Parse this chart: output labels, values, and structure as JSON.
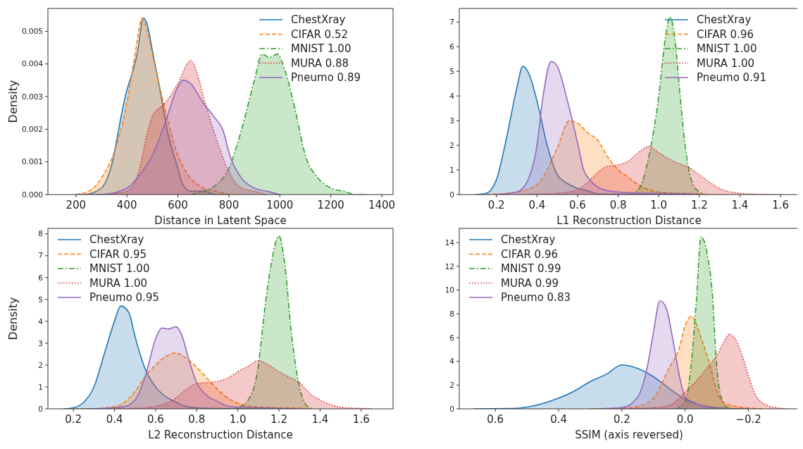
{
  "chart_data": [
    {
      "type": "area",
      "xlabel": "Distance in Latent Space",
      "ylabel": "Density",
      "xlim": [
        90,
        1444
      ],
      "ylim": [
        0,
        0.0057
      ],
      "xticks": [
        200,
        400,
        600,
        800,
        1000,
        1200,
        1400
      ],
      "yticks": [
        {
          "value": 0,
          "label": "0.000"
        },
        {
          "value": 0.001,
          "label": "0.001"
        },
        {
          "value": 0.002,
          "label": "0.002"
        },
        {
          "value": 0.003,
          "label": "0.003"
        },
        {
          "value": 0.004,
          "label": "0.004"
        },
        {
          "value": 0.005,
          "label": "0.005"
        }
      ],
      "legend": "top right",
      "grid": false,
      "series": [
        {
          "name": "ChestXray",
          "color": "#1f77b4",
          "line_style": "solid",
          "x": [
            240,
            300,
            340,
            380,
            400,
            420,
            440,
            465,
            480,
            500,
            530,
            560,
            600,
            620,
            650,
            700,
            750,
            800
          ],
          "values": [
            0,
            0.0002,
            0.0009,
            0.0025,
            0.0032,
            0.0037,
            0.0043,
            0.0054,
            0.0052,
            0.0044,
            0.0032,
            0.0019,
            0.0008,
            0.0003,
            0.0001,
            0.0001,
            0,
            0
          ]
        },
        {
          "name": "CIFAR 0.52",
          "color": "#ff7f0e",
          "line_style": "dashed",
          "x": [
            200,
            250,
            300,
            350,
            400,
            430,
            460,
            480,
            500,
            550,
            600,
            650,
            700,
            750,
            800
          ],
          "values": [
            0,
            0.0001,
            0.0005,
            0.0013,
            0.0028,
            0.0042,
            0.0054,
            0.005,
            0.0043,
            0.0026,
            0.0012,
            0.0005,
            0.0002,
            0.0001,
            0
          ]
        },
        {
          "name": "MNIST 1.00",
          "color": "#2ca02c",
          "line_style": "dashdot",
          "x": [
            650,
            700,
            750,
            800,
            850,
            900,
            930,
            960,
            990,
            1020,
            1060,
            1100,
            1150,
            1200,
            1250,
            1300,
            1350
          ],
          "values": [
            0,
            0.0001,
            0.0003,
            0.0008,
            0.002,
            0.0035,
            0.0043,
            0.0042,
            0.0043,
            0.0038,
            0.0026,
            0.0012,
            0.0005,
            0.0002,
            0.0001,
            0,
            0
          ]
        },
        {
          "name": "MURA 0.88",
          "color": "#d62728",
          "line_style": "dotted",
          "x": [
            300,
            400,
            450,
            480,
            500,
            550,
            600,
            650,
            680,
            700,
            730,
            760,
            800,
            850,
            900,
            950
          ],
          "values": [
            0,
            0.0001,
            0.0008,
            0.0019,
            0.0024,
            0.0028,
            0.0034,
            0.0041,
            0.0036,
            0.003,
            0.0022,
            0.0015,
            0.0007,
            0.0002,
            0.0001,
            0
          ]
        },
        {
          "name": "Pneumo 0.89",
          "color": "#9467bd",
          "line_style": "solid",
          "x": [
            200,
            300,
            400,
            450,
            500,
            550,
            600,
            620,
            650,
            700,
            740,
            780,
            800,
            850,
            900,
            950,
            1000
          ],
          "values": [
            0,
            0,
            0.0002,
            0.0006,
            0.0012,
            0.0022,
            0.0033,
            0.0035,
            0.0034,
            0.0028,
            0.0024,
            0.0019,
            0.0013,
            0.0005,
            0.0002,
            0.0001,
            0
          ]
        }
      ]
    },
    {
      "type": "area",
      "xlabel": "L1 Reconstruction Distance",
      "xlim": [
        0.017,
        1.69
      ],
      "ylim": [
        0,
        7.55
      ],
      "xticks": [
        {
          "value": 0.2,
          "label": "0.2"
        },
        {
          "value": 0.4,
          "label": "0.4"
        },
        {
          "value": 0.6,
          "label": "0.6"
        },
        {
          "value": 0.8,
          "label": "0.8"
        },
        {
          "value": 1,
          "label": "1.0"
        },
        {
          "value": 1.2,
          "label": "1.2"
        },
        {
          "value": 1.4,
          "label": "1.4"
        },
        {
          "value": 1.6,
          "label": "1.6"
        }
      ],
      "yticks": [
        0,
        1,
        2,
        3,
        4,
        5,
        6,
        7
      ],
      "legend": "top right",
      "grid": false,
      "series": [
        {
          "name": "ChestXray",
          "color": "#1f77b4",
          "line_style": "solid",
          "x": [
            0.1,
            0.15,
            0.2,
            0.25,
            0.3,
            0.33,
            0.36,
            0.4,
            0.45,
            0.5,
            0.55,
            0.6,
            0.65,
            0.7,
            0.8,
            1.0,
            1.2
          ],
          "values": [
            0,
            0.05,
            0.6,
            2.3,
            4.3,
            5.2,
            4.9,
            3.8,
            2.0,
            0.8,
            0.45,
            0.25,
            0.15,
            0.03,
            0.01,
            0.01,
            0
          ]
        },
        {
          "name": "CIFAR 0.96",
          "color": "#ff7f0e",
          "line_style": "dashed",
          "x": [
            0.15,
            0.3,
            0.4,
            0.45,
            0.5,
            0.56,
            0.6,
            0.65,
            0.7,
            0.75,
            0.8,
            0.85,
            0.9,
            0.95,
            1.0,
            1.1,
            1.2,
            1.25
          ],
          "values": [
            0,
            0.1,
            0.4,
            1.0,
            1.9,
            3.0,
            2.9,
            2.5,
            2.2,
            1.5,
            1.0,
            0.7,
            0.4,
            0.2,
            0.1,
            0.05,
            0.03,
            0
          ]
        },
        {
          "name": "MNIST 1.00",
          "color": "#2ca02c",
          "line_style": "dashdot",
          "x": [
            0.85,
            0.9,
            0.95,
            1.0,
            1.03,
            1.055,
            1.08,
            1.1,
            1.13,
            1.16,
            1.2,
            1.23
          ],
          "values": [
            0,
            0.2,
            1.5,
            4.0,
            6.2,
            7.2,
            6.3,
            4.5,
            2.0,
            0.6,
            0.1,
            0
          ]
        },
        {
          "name": "MURA 1.00",
          "color": "#d62728",
          "line_style": "dotted",
          "x": [
            0.3,
            0.5,
            0.6,
            0.65,
            0.7,
            0.75,
            0.8,
            0.85,
            0.9,
            0.95,
            1.0,
            1.05,
            1.1,
            1.15,
            1.2,
            1.25,
            1.3,
            1.4,
            1.5,
            1.6
          ],
          "values": [
            0,
            0.05,
            0.2,
            0.5,
            0.9,
            1.15,
            1.2,
            1.35,
            1.7,
            1.95,
            1.7,
            1.45,
            1.25,
            1.1,
            0.8,
            0.5,
            0.25,
            0.05,
            0.01,
            0
          ]
        },
        {
          "name": "Pneumo 0.91",
          "color": "#9467bd",
          "line_style": "solid",
          "x": [
            0.2,
            0.3,
            0.35,
            0.4,
            0.43,
            0.47,
            0.5,
            0.55,
            0.6,
            0.63,
            0.66,
            0.7,
            0.75,
            0.85,
            0.95,
            1.1,
            1.2
          ],
          "values": [
            0,
            0.1,
            0.5,
            2.0,
            4.0,
            5.4,
            5.2,
            3.8,
            2.1,
            1.0,
            0.6,
            0.3,
            0.15,
            0.08,
            0.05,
            0.04,
            0
          ]
        }
      ]
    },
    {
      "type": "area",
      "xlabel": "L2 Reconstruction Distance",
      "ylabel": "Density",
      "xlim": [
        0.076,
        1.755
      ],
      "ylim": [
        0,
        8.25
      ],
      "xticks": [
        {
          "value": 0.2,
          "label": "0.2"
        },
        {
          "value": 0.4,
          "label": "0.4"
        },
        {
          "value": 0.6,
          "label": "0.6"
        },
        {
          "value": 0.8,
          "label": "0.8"
        },
        {
          "value": 1,
          "label": "1.0"
        },
        {
          "value": 1.2,
          "label": "1.2"
        },
        {
          "value": 1.4,
          "label": "1.4"
        },
        {
          "value": 1.6,
          "label": "1.6"
        }
      ],
      "yticks": [
        0,
        1,
        2,
        3,
        4,
        5,
        6,
        7,
        8
      ],
      "legend": "top left",
      "grid": false,
      "series": [
        {
          "name": "ChestXray",
          "color": "#1f77b4",
          "line_style": "solid",
          "x": [
            0.15,
            0.2,
            0.25,
            0.3,
            0.35,
            0.4,
            0.43,
            0.47,
            0.5,
            0.55,
            0.6,
            0.65,
            0.7,
            0.75,
            0.8,
            1.0,
            1.2
          ],
          "values": [
            0,
            0.05,
            0.3,
            1.0,
            2.5,
            4.0,
            4.7,
            4.4,
            3.3,
            1.8,
            1.0,
            0.55,
            0.3,
            0.1,
            0.05,
            0.01,
            0
          ]
        },
        {
          "name": "CIFAR 0.95",
          "color": "#ff7f0e",
          "line_style": "dashed",
          "x": [
            0.2,
            0.3,
            0.4,
            0.45,
            0.5,
            0.55,
            0.6,
            0.65,
            0.7,
            0.75,
            0.8,
            0.85,
            0.9,
            0.95,
            1.0,
            1.05,
            1.1,
            1.2,
            1.3,
            1.35
          ],
          "values": [
            0,
            0.01,
            0.1,
            0.3,
            0.8,
            1.5,
            2.0,
            2.4,
            2.55,
            2.3,
            1.9,
            1.4,
            0.9,
            0.5,
            0.25,
            0.12,
            0.08,
            0.05,
            0.03,
            0
          ]
        },
        {
          "name": "MNIST 1.00",
          "color": "#2ca02c",
          "line_style": "dashdot",
          "x": [
            0.95,
            1.0,
            1.05,
            1.1,
            1.13,
            1.16,
            1.2,
            1.23,
            1.26,
            1.3,
            1.33,
            1.36
          ],
          "values": [
            0,
            0.05,
            0.4,
            2.0,
            4.5,
            6.5,
            7.9,
            6.5,
            3.5,
            1.0,
            0.2,
            0
          ]
        },
        {
          "name": "MURA 1.00",
          "color": "#d62728",
          "line_style": "dotted",
          "x": [
            0.4,
            0.55,
            0.65,
            0.7,
            0.75,
            0.8,
            0.85,
            0.9,
            0.95,
            1.0,
            1.05,
            1.1,
            1.15,
            1.2,
            1.25,
            1.3,
            1.35,
            1.4,
            1.45,
            1.5,
            1.6,
            1.66
          ],
          "values": [
            0,
            0.05,
            0.25,
            0.5,
            0.9,
            1.15,
            1.2,
            1.25,
            1.4,
            1.7,
            1.95,
            2.2,
            2.0,
            1.7,
            1.45,
            1.2,
            0.7,
            0.4,
            0.2,
            0.07,
            0.02,
            0
          ]
        },
        {
          "name": "Pneumo 0.95",
          "color": "#9467bd",
          "line_style": "solid",
          "x": [
            0.25,
            0.35,
            0.45,
            0.5,
            0.55,
            0.6,
            0.63,
            0.66,
            0.7,
            0.73,
            0.76,
            0.8,
            0.85,
            0.9,
            0.95,
            1.0,
            1.1,
            1.2,
            1.3
          ],
          "values": [
            0,
            0.02,
            0.1,
            0.4,
            1.5,
            3.2,
            3.7,
            3.65,
            3.75,
            3.3,
            2.3,
            1.2,
            0.6,
            0.35,
            0.12,
            0.08,
            0.05,
            0.02,
            0
          ]
        }
      ]
    },
    {
      "type": "area",
      "xlabel": "SSIM (axis reversed)",
      "xlim": [
        0.714,
        -0.359
      ],
      "ylim": [
        0,
        15.2
      ],
      "xticks": [
        0.6,
        0.4,
        0.2,
        {
          "value": 0,
          "label": "0.0"
        },
        {
          "value": -0.2,
          "label": "−0.2"
        }
      ],
      "yticks": [
        0,
        2,
        4,
        6,
        8,
        10,
        12,
        14
      ],
      "legend": "top left",
      "grid": false,
      "series": [
        {
          "name": "ChestXray",
          "color": "#1f77b4",
          "line_style": "solid",
          "x": [
            0.67,
            0.55,
            0.5,
            0.45,
            0.4,
            0.35,
            0.3,
            0.25,
            0.2,
            0.15,
            0.1,
            0.05,
            0.0,
            -0.05,
            -0.1,
            -0.15,
            -0.2
          ],
          "values": [
            0,
            0.03,
            0.15,
            0.45,
            0.9,
            1.5,
            2.3,
            2.9,
            3.7,
            3.4,
            2.7,
            1.7,
            0.8,
            0.3,
            0.1,
            0.03,
            0
          ]
        },
        {
          "name": "CIFAR 0.96",
          "color": "#ff7f0e",
          "line_style": "dashed",
          "x": [
            0.3,
            0.2,
            0.15,
            0.1,
            0.05,
            0.02,
            0.0,
            -0.02,
            -0.05,
            -0.08,
            -0.1,
            -0.13,
            -0.17,
            -0.22,
            -0.25
          ],
          "values": [
            0,
            0.05,
            0.2,
            0.9,
            3.5,
            5.0,
            7.0,
            7.8,
            6.0,
            3.5,
            1.5,
            0.4,
            0.15,
            0.03,
            0
          ]
        },
        {
          "name": "MNIST 0.99",
          "color": "#2ca02c",
          "line_style": "dashdot",
          "x": [
            0.03,
            0.0,
            -0.02,
            -0.035,
            -0.05,
            -0.07,
            -0.085,
            -0.1,
            -0.12,
            -0.14
          ],
          "values": [
            0,
            0.6,
            4.0,
            9.0,
            14.5,
            13.0,
            10.0,
            3.5,
            0.5,
            0
          ]
        },
        {
          "name": "MURA 0.99",
          "color": "#d62728",
          "line_style": "dotted",
          "x": [
            0.3,
            0.2,
            0.1,
            0.05,
            0.0,
            -0.05,
            -0.08,
            -0.1,
            -0.12,
            -0.14,
            -0.16,
            -0.18,
            -0.2,
            -0.22,
            -0.25,
            -0.3,
            -0.33
          ],
          "values": [
            0,
            0.03,
            0.1,
            0.3,
            1.4,
            2.8,
            3.8,
            4.5,
            5.5,
            6.3,
            5.8,
            4.5,
            2.8,
            1.3,
            0.4,
            0.05,
            0
          ]
        },
        {
          "name": "Pneumo 0.83",
          "color": "#9467bd",
          "line_style": "solid",
          "x": [
            0.28,
            0.2,
            0.15,
            0.12,
            0.1,
            0.08,
            0.06,
            0.04,
            0.02,
            0.0,
            -0.03,
            -0.06,
            -0.1,
            -0.15
          ],
          "values": [
            0,
            0.1,
            1.0,
            3.5,
            6.5,
            9.1,
            8.5,
            6.0,
            3.0,
            1.0,
            0.5,
            0.2,
            0.05,
            0
          ]
        }
      ]
    }
  ]
}
